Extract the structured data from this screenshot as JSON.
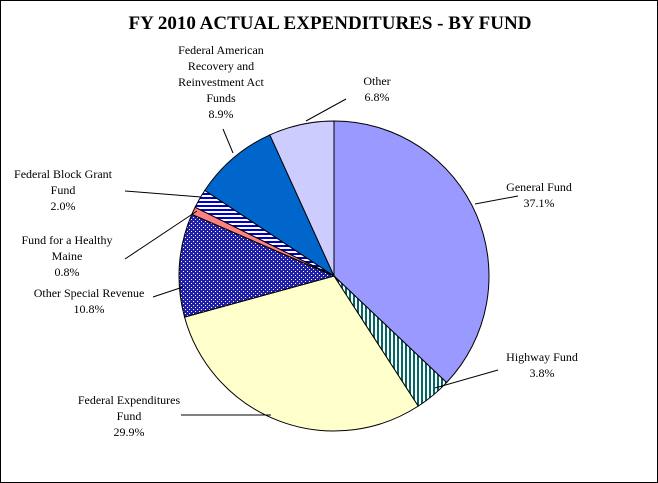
{
  "chart_data": {
    "type": "pie",
    "title": "FY 2010 ACTUAL EXPENDITURES - BY FUND",
    "slices": [
      {
        "label_lines": [
          "General Fund"
        ],
        "value_label": "37.1%",
        "value": 37.1,
        "color": "#9999ff",
        "pattern": "solid"
      },
      {
        "label_lines": [
          "Highway Fund"
        ],
        "value_label": "3.8%",
        "value": 3.8,
        "color": "#006666",
        "pattern": "vertical-stripes"
      },
      {
        "label_lines": [
          "Federal Expenditures",
          "Fund"
        ],
        "value_label": "29.9%",
        "value": 29.9,
        "color": "#ffffcc",
        "pattern": "solid"
      },
      {
        "label_lines": [
          "Other Special Revenue"
        ],
        "value_label": "10.8%",
        "value": 10.8,
        "color": "#1f1fa8",
        "pattern": "grid"
      },
      {
        "label_lines": [
          "Fund for a Healthy",
          "Maine"
        ],
        "value_label": "0.8%",
        "value": 0.8,
        "color": "#ff8080",
        "pattern": "solid"
      },
      {
        "label_lines": [
          "Federal Block Grant",
          "Fund"
        ],
        "value_label": "2.0%",
        "value": 2.0,
        "color": "#0000cc",
        "pattern": "horizontal-stripes"
      },
      {
        "label_lines": [
          "Federal American",
          "Recovery and",
          "Reinvestment Act",
          "Funds"
        ],
        "value_label": "8.9%",
        "value": 8.9,
        "color": "#0066cc",
        "pattern": "solid"
      },
      {
        "label_lines": [
          "Other"
        ],
        "value_label": "6.8%",
        "value": 6.8,
        "color": "#ccccff",
        "pattern": "solid"
      }
    ],
    "start": "12 o'clock",
    "direction": "clockwise",
    "legend": "none",
    "labels": "outside with leader lines"
  }
}
